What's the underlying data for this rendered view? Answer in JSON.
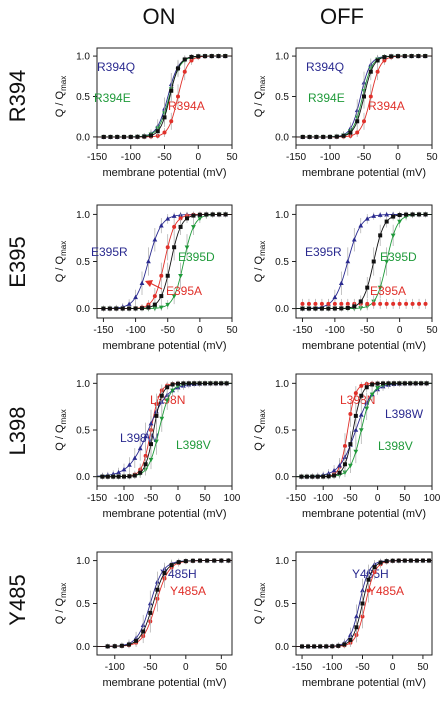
{
  "column_titles": [
    "ON",
    "OFF"
  ],
  "row_titles": [
    "R394",
    "E395",
    "L398",
    "Y485"
  ],
  "axes_text": {
    "xlabel": "membrane potential (mV)",
    "ylabel_main": "Q / Q",
    "ylabel_sub": "max"
  },
  "colors": {
    "blue": "#2a2a8f",
    "red": "#e0302a",
    "green": "#1f9a3a",
    "black": "#111111",
    "grey": "#aaaaaa"
  },
  "chart_data": [
    {
      "type": "scatter",
      "panel": "R394 ON",
      "xlim": [
        -150,
        50
      ],
      "ylim": [
        -0.1,
        1.1
      ],
      "xticks": [
        -150,
        -100,
        -50,
        0,
        50
      ],
      "yticks": [
        0.0,
        0.5,
        1.0
      ],
      "xlabel": "membrane potential (mV)",
      "ylabel": "Q / Qmax",
      "series": [
        {
          "name": "R394Q",
          "color": "blue",
          "v50": -45,
          "k": 8
        },
        {
          "name": "R394E",
          "color": "green",
          "v50": -43,
          "k": 8
        },
        {
          "name": "R394A",
          "color": "red",
          "v50": -30,
          "k": 7
        },
        {
          "name": "",
          "color": "black",
          "v50": -42,
          "k": 7
        }
      ]
    },
    {
      "type": "scatter",
      "panel": "R394 OFF",
      "xlim": [
        -150,
        50
      ],
      "ylim": [
        -0.1,
        1.1
      ],
      "xticks": [
        -150,
        -100,
        -50,
        0,
        50
      ],
      "yticks": [
        0.0,
        0.5,
        1.0
      ],
      "xlabel": "membrane potential (mV)",
      "ylabel": "Q / Qmax",
      "series": [
        {
          "name": "R394Q",
          "color": "blue",
          "v50": -55,
          "k": 7
        },
        {
          "name": "R394E",
          "color": "green",
          "v50": -52,
          "k": 7
        },
        {
          "name": "R394A",
          "color": "red",
          "v50": -40,
          "k": 7
        },
        {
          "name": "",
          "color": "black",
          "v50": -50,
          "k": 7
        }
      ]
    },
    {
      "type": "scatter",
      "panel": "E395 ON",
      "xlim": [
        -160,
        50
      ],
      "ylim": [
        -0.1,
        1.1
      ],
      "xticks": [
        -150,
        -100,
        -50,
        0,
        50
      ],
      "yticks": [
        0.0,
        0.5,
        1.0
      ],
      "xlabel": "membrane potential (mV)",
      "ylabel": "Q / Qmax",
      "series": [
        {
          "name": "E395R",
          "color": "blue",
          "v50": -80,
          "k": 10
        },
        {
          "name": "E395D",
          "color": "green",
          "v50": -25,
          "k": 8
        },
        {
          "name": "E395A",
          "color": "red",
          "v50": -55,
          "k": 8
        },
        {
          "name": "",
          "color": "black",
          "v50": -45,
          "k": 8
        }
      ]
    },
    {
      "type": "scatter",
      "panel": "E395 OFF",
      "xlim": [
        -160,
        50
      ],
      "ylim": [
        -0.1,
        1.1
      ],
      "xticks": [
        -150,
        -100,
        -50,
        0,
        50
      ],
      "yticks": [
        0.0,
        0.5,
        1.0
      ],
      "xlabel": "membrane potential (mV)",
      "ylabel": "Q / Qmax",
      "series": [
        {
          "name": "E395R",
          "color": "blue",
          "v50": -80,
          "k": 10
        },
        {
          "name": "E395D",
          "color": "green",
          "v50": -20,
          "k": 8
        },
        {
          "name": "E395A",
          "color": "red",
          "flat": 0.05
        },
        {
          "name": "",
          "color": "black",
          "v50": -40,
          "k": 8
        }
      ]
    },
    {
      "type": "scatter",
      "panel": "L398 ON",
      "xlim": [
        -150,
        100
      ],
      "ylim": [
        -0.1,
        1.1
      ],
      "xticks": [
        -150,
        -100,
        -50,
        0,
        50,
        100
      ],
      "yticks": [
        0.0,
        0.5,
        1.0
      ],
      "xlabel": "membrane potential (mV)",
      "ylabel": "Q / Qmax",
      "series": [
        {
          "name": "L398N",
          "color": "red",
          "v50": -50,
          "k": 8
        },
        {
          "name": "L398W",
          "color": "blue",
          "v50": -55,
          "k": 18
        },
        {
          "name": "L398V",
          "color": "green",
          "v50": -35,
          "k": 10
        },
        {
          "name": "",
          "color": "black",
          "v50": -45,
          "k": 8
        }
      ]
    },
    {
      "type": "scatter",
      "panel": "L398 OFF",
      "xlim": [
        -150,
        100
      ],
      "ylim": [
        -0.1,
        1.1
      ],
      "xticks": [
        -150,
        -100,
        -50,
        0,
        50,
        100
      ],
      "yticks": [
        0.0,
        0.5,
        1.0
      ],
      "xlabel": "membrane potential (mV)",
      "ylabel": "Q / Qmax",
      "series": [
        {
          "name": "L398N",
          "color": "red",
          "v50": -55,
          "k": 7
        },
        {
          "name": "L398W",
          "color": "blue",
          "v50": -40,
          "k": 15
        },
        {
          "name": "L398V",
          "color": "green",
          "v50": -30,
          "k": 10
        },
        {
          "name": "",
          "color": "black",
          "v50": -45,
          "k": 8
        }
      ]
    },
    {
      "type": "scatter",
      "panel": "Y485 ON",
      "xlim": [
        -125,
        65
      ],
      "ylim": [
        -0.1,
        1.1
      ],
      "xticks": [
        -100,
        -50,
        0,
        50
      ],
      "yticks": [
        0.0,
        0.5,
        1.0
      ],
      "xlabel": "membrane potential (mV)",
      "ylabel": "Q / Qmax",
      "series": [
        {
          "name": "Y485H",
          "color": "blue",
          "v50": -50,
          "k": 9
        },
        {
          "name": "Y485A",
          "color": "red",
          "v50": -42,
          "k": 9
        },
        {
          "name": "",
          "color": "black",
          "v50": -46,
          "k": 9
        }
      ]
    },
    {
      "type": "scatter",
      "panel": "Y485 OFF",
      "xlim": [
        -160,
        65
      ],
      "ylim": [
        -0.1,
        1.1
      ],
      "xticks": [
        -150,
        -100,
        -50,
        0,
        50
      ],
      "yticks": [
        0.0,
        0.5,
        1.0
      ],
      "xlabel": "membrane potential (mV)",
      "ylabel": "Q / Qmax",
      "series": [
        {
          "name": "Y485H",
          "color": "blue",
          "v50": -55,
          "k": 8
        },
        {
          "name": "Y485A",
          "color": "red",
          "v50": -45,
          "k": 8
        },
        {
          "name": "",
          "color": "black",
          "v50": -50,
          "k": 8
        }
      ]
    }
  ]
}
